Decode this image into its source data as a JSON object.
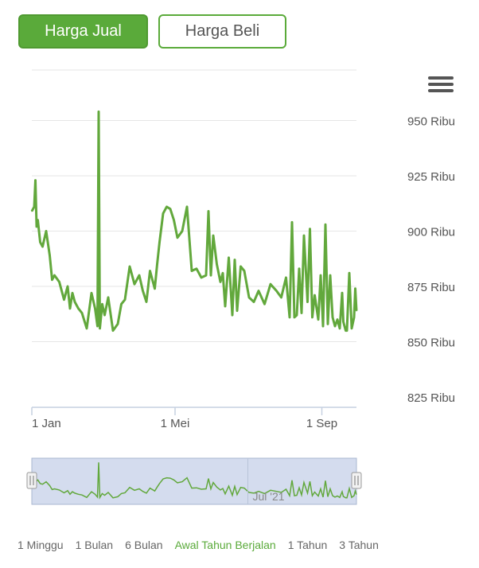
{
  "tabs": [
    {
      "label": "Harga Jual",
      "active": true
    },
    {
      "label": "Harga Beli",
      "active": false
    }
  ],
  "menu_icon": "hamburger-menu-icon",
  "colors": {
    "accent": "#5aaa3a",
    "line": "#62a83c",
    "grid": "#e6e6e6",
    "navigator_fill": "#ccd6eb"
  },
  "range_selector": {
    "options": [
      "1 Minggu",
      "1 Bulan",
      "6 Bulan",
      "Awal Tahun Berjalan",
      "1 Tahun",
      "3 Tahun"
    ],
    "selected": "Awal Tahun Berjalan"
  },
  "chart_data": {
    "type": "line",
    "title": "",
    "xlabel": "",
    "ylabel": "",
    "y_unit": "Ribu",
    "ylim": [
      825,
      960
    ],
    "yticks": [
      825,
      850,
      875,
      900,
      925,
      950
    ],
    "ytick_labels": [
      "825 Ribu",
      "850 Ribu",
      "875 Ribu",
      "900 Ribu",
      "925 Ribu",
      "950 Ribu"
    ],
    "y_axis_side": "right",
    "xlim": [
      "2021-01-01",
      "2021-09-30"
    ],
    "xticks": [
      "2021-01-01",
      "2021-05-01",
      "2021-09-01"
    ],
    "xtick_labels": [
      "1 Jan",
      "1 Mei",
      "1 Sep"
    ],
    "grid": true,
    "legend": "none",
    "navigator_label": "Jul '21",
    "series": [
      {
        "x": [
          "2021-01-01",
          "2021-01-03",
          "2021-01-04",
          "2021-01-05",
          "2021-01-06",
          "2021-01-08",
          "2021-01-10",
          "2021-01-13",
          "2021-01-16",
          "2021-01-18",
          "2021-01-20",
          "2021-01-24",
          "2021-01-28",
          "2021-01-31",
          "2021-02-02",
          "2021-02-04",
          "2021-02-06",
          "2021-02-09",
          "2021-02-12",
          "2021-02-16",
          "2021-02-20",
          "2021-02-23",
          "2021-02-25",
          "2021-02-26",
          "2021-02-27",
          "2021-03-01",
          "2021-03-03",
          "2021-03-06",
          "2021-03-10",
          "2021-03-14",
          "2021-03-17",
          "2021-03-20",
          "2021-03-24",
          "2021-03-28",
          "2021-04-01",
          "2021-04-04",
          "2021-04-07",
          "2021-04-10",
          "2021-04-14",
          "2021-04-16",
          "2021-04-18",
          "2021-04-21",
          "2021-04-24",
          "2021-04-27",
          "2021-04-30",
          "2021-05-03",
          "2021-05-07",
          "2021-05-11",
          "2021-05-15",
          "2021-05-19",
          "2021-05-23",
          "2021-05-27",
          "2021-05-29",
          "2021-05-31",
          "2021-06-02",
          "2021-06-05",
          "2021-06-08",
          "2021-06-10",
          "2021-06-12",
          "2021-06-15",
          "2021-06-18",
          "2021-06-20",
          "2021-06-22",
          "2021-06-25",
          "2021-06-28",
          "2021-07-02",
          "2021-07-06",
          "2021-07-10",
          "2021-07-15",
          "2021-07-20",
          "2021-07-25",
          "2021-07-29",
          "2021-08-02",
          "2021-08-05",
          "2021-08-07",
          "2021-08-09",
          "2021-08-11",
          "2021-08-13",
          "2021-08-15",
          "2021-08-17",
          "2021-08-20",
          "2021-08-22",
          "2021-08-24",
          "2021-08-26",
          "2021-08-29",
          "2021-08-31",
          "2021-09-02",
          "2021-09-04",
          "2021-09-06",
          "2021-09-08",
          "2021-09-10",
          "2021-09-12",
          "2021-09-14",
          "2021-09-16",
          "2021-09-18",
          "2021-09-19",
          "2021-09-21",
          "2021-09-22",
          "2021-09-24",
          "2021-09-26",
          "2021-09-28",
          "2021-09-29",
          "2021-09-30"
        ],
        "values": [
          909,
          911,
          923,
          902,
          905,
          895,
          893,
          900,
          889,
          878,
          880,
          877,
          869,
          875,
          865,
          872,
          868,
          865,
          863,
          856,
          872,
          865,
          857,
          954,
          856,
          867,
          862,
          870,
          855,
          858,
          867,
          869,
          884,
          876,
          880,
          873,
          868,
          882,
          874,
          885,
          895,
          908,
          911,
          910,
          905,
          897,
          900,
          911,
          882,
          883,
          879,
          880,
          909,
          880,
          898,
          885,
          877,
          881,
          866,
          888,
          862,
          887,
          864,
          884,
          882,
          870,
          868,
          873,
          867,
          876,
          873,
          870,
          879,
          861,
          904,
          861,
          862,
          883,
          863,
          898,
          868,
          901,
          861,
          871,
          860,
          880,
          857,
          903,
          858,
          880,
          861,
          857,
          860,
          856,
          872,
          859,
          855,
          855,
          881,
          856,
          861,
          874,
          864
        ]
      }
    ]
  }
}
